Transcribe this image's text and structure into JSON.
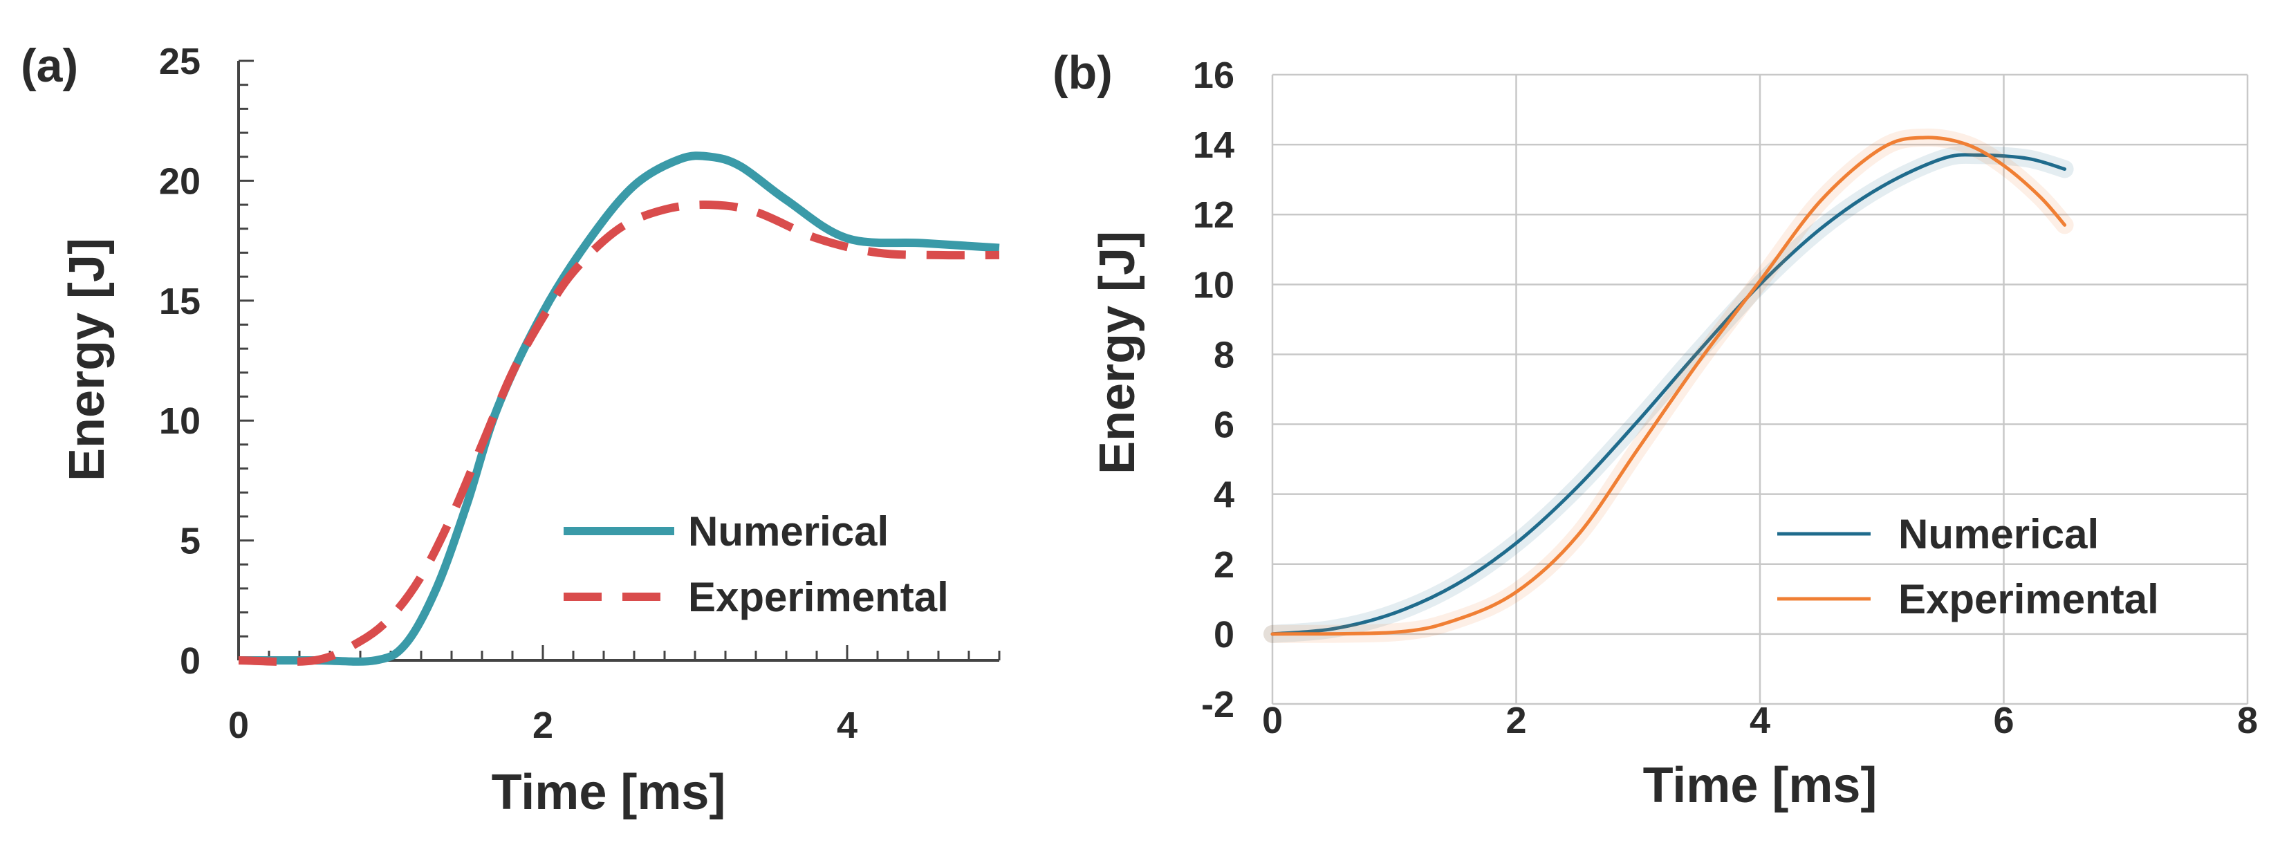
{
  "chart_data": [
    {
      "type": "line",
      "panel_label": "(a)",
      "xlabel": "Time [ms]",
      "ylabel": "Energy [J]",
      "xlim": [
        0,
        5
      ],
      "ylim": [
        0,
        25
      ],
      "x_ticks": [
        "0",
        "2",
        "4"
      ],
      "x_tick_values": [
        0,
        2,
        4
      ],
      "y_ticks": [
        "0",
        "5",
        "10",
        "15",
        "20",
        "25"
      ],
      "y_tick_values": [
        0,
        5,
        10,
        15,
        20,
        25
      ],
      "grid": false,
      "legend_position": "bottom-right",
      "series": [
        {
          "name": "Numerical",
          "color": "#3a9aa8",
          "style": "solid",
          "x": [
            0,
            0.5,
            0.9,
            1.1,
            1.3,
            1.5,
            1.7,
            2.0,
            2.3,
            2.6,
            2.9,
            3.1,
            3.3,
            3.6,
            4.0,
            4.5,
            5.0
          ],
          "y": [
            0,
            0,
            0,
            0.7,
            3,
            6.5,
            10.5,
            14.5,
            17.5,
            19.8,
            20.9,
            21,
            20.6,
            19.2,
            17.6,
            17.4,
            17.2
          ]
        },
        {
          "name": "Experimental",
          "color": "#d94c4c",
          "style": "dashed",
          "x": [
            0,
            0.5,
            0.8,
            1.0,
            1.2,
            1.4,
            1.6,
            1.8,
            2.0,
            2.2,
            2.5,
            2.8,
            3.1,
            3.4,
            3.8,
            4.2,
            4.6,
            5.0
          ],
          "y": [
            0,
            0,
            0.8,
            1.8,
            3.5,
            6.0,
            9.0,
            12.0,
            14.3,
            16.2,
            18.0,
            18.8,
            19.0,
            18.7,
            17.6,
            17.0,
            16.9,
            16.9
          ]
        }
      ]
    },
    {
      "type": "line",
      "panel_label": "(b)",
      "xlabel": "Time [ms]",
      "ylabel": "Energy [J]",
      "xlim": [
        0,
        8
      ],
      "ylim": [
        -2,
        16
      ],
      "x_ticks": [
        "0",
        "2",
        "4",
        "6",
        "8"
      ],
      "x_tick_values": [
        0,
        2,
        4,
        6,
        8
      ],
      "y_ticks": [
        "-2",
        "0",
        "2",
        "4",
        "6",
        "8",
        "10",
        "12",
        "14",
        "16"
      ],
      "y_tick_values": [
        -2,
        0,
        2,
        4,
        6,
        8,
        10,
        12,
        14,
        16
      ],
      "grid": true,
      "legend_position": "bottom-right",
      "series": [
        {
          "name": "Numerical",
          "color": "#1f6b8c",
          "style": "solid",
          "x": [
            0,
            0.5,
            1.0,
            1.5,
            2.0,
            2.5,
            3.0,
            3.5,
            4.0,
            4.5,
            5.0,
            5.5,
            5.8,
            6.2,
            6.5
          ],
          "y": [
            0,
            0.15,
            0.6,
            1.4,
            2.6,
            4.2,
            6.1,
            8.1,
            10.0,
            11.6,
            12.8,
            13.6,
            13.7,
            13.6,
            13.3
          ]
        },
        {
          "name": "Experimental",
          "color": "#f07f34",
          "style": "solid",
          "x": [
            0,
            1.0,
            1.5,
            2.0,
            2.5,
            3.0,
            3.5,
            4.0,
            4.5,
            5.0,
            5.35,
            5.7,
            6.0,
            6.3,
            6.5
          ],
          "y": [
            0,
            0.05,
            0.4,
            1.2,
            2.8,
            5.3,
            7.8,
            10.1,
            12.4,
            13.9,
            14.2,
            14.0,
            13.4,
            12.5,
            11.7
          ]
        }
      ]
    }
  ]
}
